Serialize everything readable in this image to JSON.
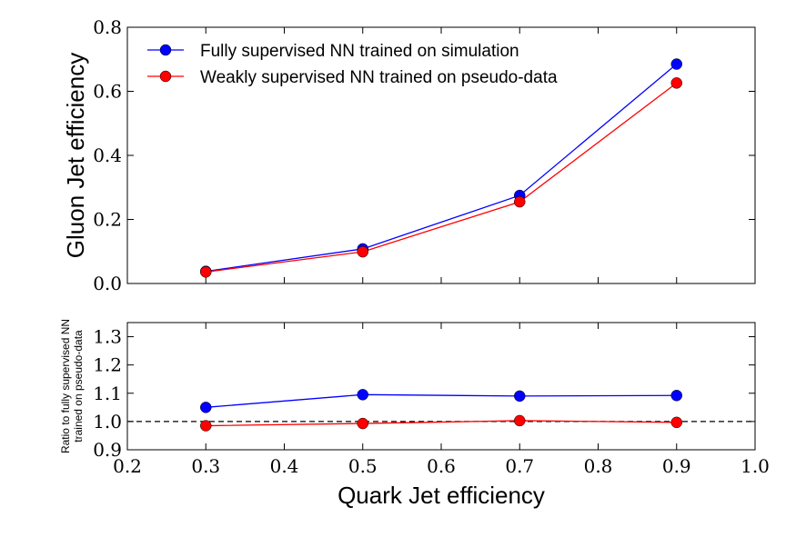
{
  "chart_data": [
    {
      "panel": "top",
      "type": "line",
      "title": "",
      "xlabel": "",
      "ylabel": "Gluon Jet efficiency",
      "xlim": [
        0.2,
        1.0
      ],
      "ylim": [
        0.0,
        0.8
      ],
      "xticks": [
        0.2,
        0.3,
        0.4,
        0.5,
        0.6,
        0.7,
        0.8,
        0.9,
        1.0
      ],
      "yticks": [
        0.0,
        0.2,
        0.4,
        0.6,
        0.8
      ],
      "ytick_labels": [
        "0.0",
        "0.2",
        "0.4",
        "0.6",
        "0.8"
      ],
      "legend_position": "top-left",
      "x": [
        0.3,
        0.5,
        0.7,
        0.9
      ],
      "series": [
        {
          "name": "Fully supervised NN trained on simulation",
          "color": "#0000ff",
          "values": [
            0.038,
            0.108,
            0.275,
            0.685
          ]
        },
        {
          "name": "Weakly supervised NN trained on pseudo-data",
          "color": "#ff0000",
          "values": [
            0.036,
            0.099,
            0.255,
            0.626
          ]
        }
      ]
    },
    {
      "panel": "bottom",
      "type": "line",
      "title": "",
      "xlabel": "Quark Jet efficiency",
      "ylabel_line1": "Ratio to fully supervised NN",
      "ylabel_line2": "trained on pseudo-data",
      "xlim": [
        0.2,
        1.0
      ],
      "ylim": [
        0.9,
        1.35
      ],
      "xticks": [
        0.2,
        0.3,
        0.4,
        0.5,
        0.6,
        0.7,
        0.8,
        0.9,
        1.0
      ],
      "xtick_labels": [
        "0.2",
        "0.3",
        "0.4",
        "0.5",
        "0.6",
        "0.7",
        "0.8",
        "0.9",
        "1.0"
      ],
      "yticks": [
        0.9,
        1.0,
        1.1,
        1.2,
        1.3
      ],
      "ytick_labels": [
        "0.9",
        "1.0",
        "1.1",
        "1.2",
        "1.3"
      ],
      "reference_line": 1.0,
      "x": [
        0.3,
        0.5,
        0.7,
        0.9
      ],
      "series": [
        {
          "name": "Fully supervised NN trained on simulation",
          "color": "#0000ff",
          "values": [
            1.05,
            1.095,
            1.09,
            1.092
          ]
        },
        {
          "name": "Weakly supervised NN trained on pseudo-data",
          "color": "#ff0000",
          "values": [
            0.985,
            0.993,
            1.003,
            0.997
          ]
        }
      ]
    }
  ]
}
